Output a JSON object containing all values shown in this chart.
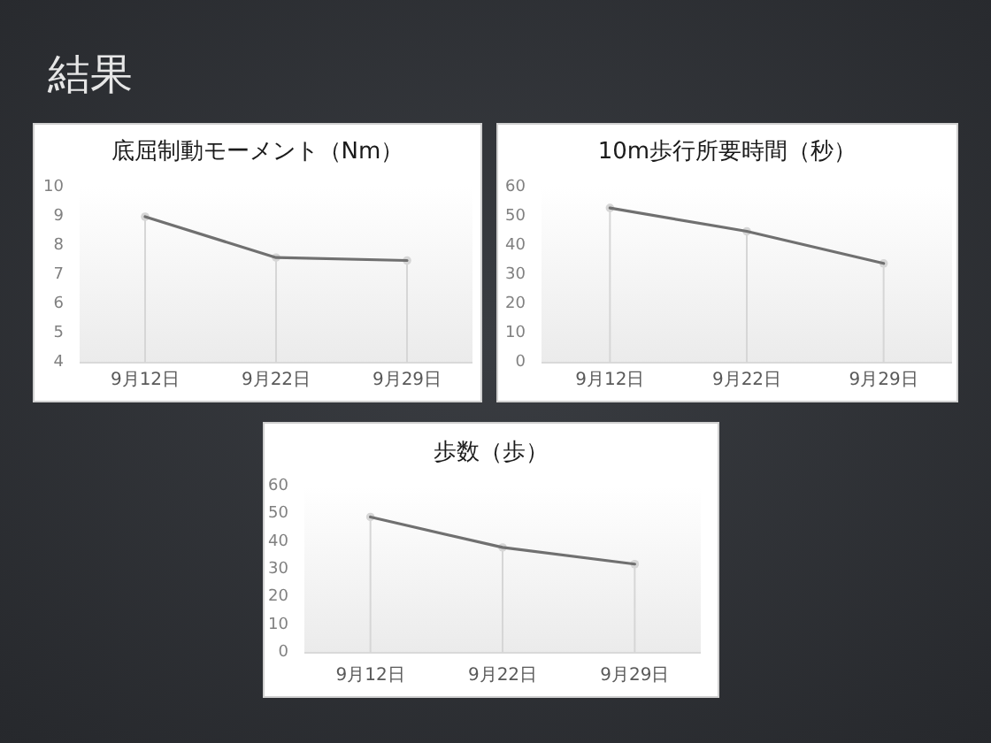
{
  "chart_data": [
    {
      "type": "line",
      "title": "底屈制動モーメント（Nm）",
      "annotations": [
        "結果"
      ],
      "categories": [
        "9月12日",
        "9月22日",
        "9月29日"
      ],
      "series": [
        {
          "type": "lollipop",
          "color": "#d6d6d6",
          "values": [
            9.0,
            7.6,
            7.5
          ]
        },
        {
          "color": "#707070",
          "values": [
            9.0,
            7.6,
            7.5
          ]
        }
      ],
      "ylim": [
        4,
        10
      ],
      "yticks": [
        4,
        5,
        6,
        7,
        8,
        9,
        10
      ]
    },
    {
      "type": "line",
      "title": "10m歩行所要時間（秒）",
      "categories": [
        "9月12日",
        "9月22日",
        "9月29日"
      ],
      "series": [
        {
          "type": "lollipop",
          "color": "#d6d6d6",
          "values": [
            53,
            45,
            34
          ]
        },
        {
          "color": "#707070",
          "values": [
            53,
            45,
            34
          ]
        }
      ],
      "ylim": [
        0,
        60
      ],
      "yticks": [
        0,
        10,
        20,
        30,
        40,
        50,
        60
      ]
    },
    {
      "type": "line",
      "title": "歩数（歩）",
      "categories": [
        "9月12日",
        "9月22日",
        "9月29日"
      ],
      "series": [
        {
          "type": "lollipop",
          "color": "#d6d6d6",
          "values": [
            49,
            38,
            32
          ]
        },
        {
          "color": "#707070",
          "values": [
            49,
            38,
            32
          ]
        }
      ],
      "ylim": [
        0,
        60
      ],
      "yticks": [
        0,
        10,
        20,
        30,
        40,
        50,
        60
      ]
    }
  ]
}
